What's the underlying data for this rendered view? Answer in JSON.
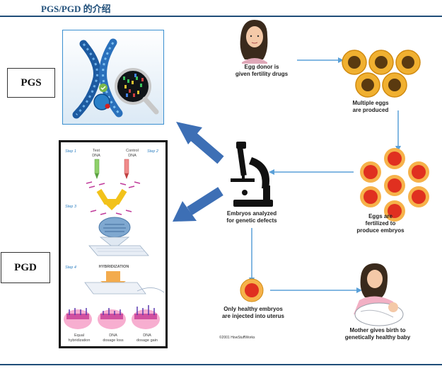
{
  "header": {
    "title": "PGS/PGD 的介绍"
  },
  "labels": {
    "pgs": "PGS",
    "pgd": "PGD"
  },
  "flow": {
    "egg_donor": "Egg donor is\ngiven fertility drugs",
    "multiple_eggs": "Multiple eggs\nare produced",
    "fertilized": "Eggs are\nfertilized to\nproduce embryos",
    "analyzed": "Embryos analyzed\nfor genetic defects",
    "injected": "Only healthy embryos\nare injected into uterus",
    "birth": "Mother gives birth to\ngenetically healthy baby",
    "copyright": "©2001 HowStuffWorks"
  },
  "pgd_panel": {
    "step1": "Step 1",
    "step2": "Step 2",
    "step3": "Step 3",
    "step4": "Step 4",
    "test_dna": "Test\nDNA",
    "control_dna": "Control\nDNA",
    "hybridization": "HYBRIDIZATION",
    "result_equal": "Equal\nhybridization",
    "result_loss": "DNA\ndosage loss",
    "result_gain": "DNA\ndosage gain"
  },
  "colors": {
    "rule": "#1f4e79",
    "arrow": "#3d6fb5",
    "egg_outer": "#f0b030",
    "egg_core": "#5a3a10",
    "embryo": "#e03020",
    "flow_line": "#5aa0d8"
  }
}
